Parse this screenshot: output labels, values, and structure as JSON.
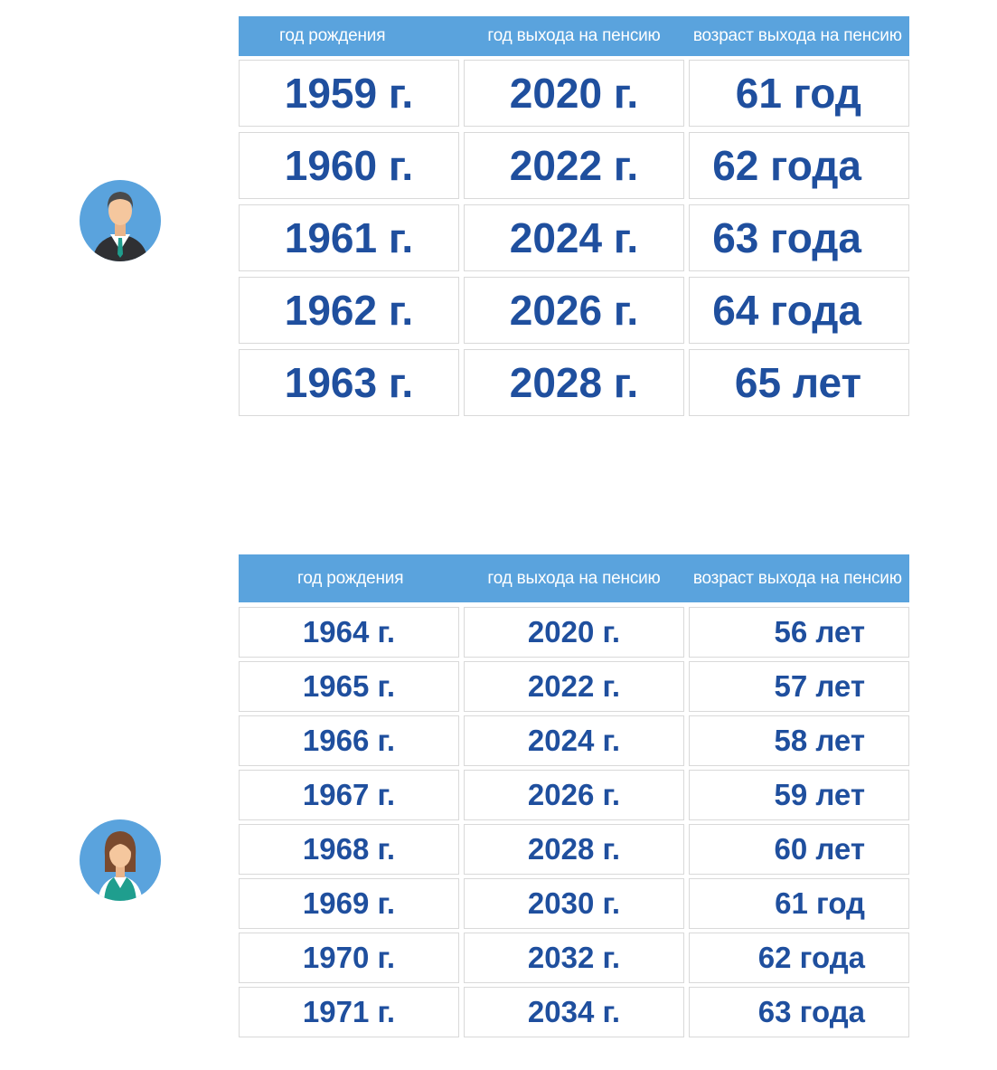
{
  "men_table": {
    "headers": [
      "год рождения",
      "год выхода на пенсию",
      "возраст выхода на пенсию"
    ],
    "rows": [
      [
        "1959 г.",
        "2020 г.",
        "61 год"
      ],
      [
        "1960 г.",
        "2022 г.",
        "62 года"
      ],
      [
        "1961 г.",
        "2024 г.",
        "63 года"
      ],
      [
        "1962 г.",
        "2026 г.",
        "64 года"
      ],
      [
        "1963 г.",
        "2028 г.",
        "65 лет"
      ]
    ]
  },
  "women_table": {
    "headers": [
      "год рождения",
      "год выхода на пенсию",
      "возраст выхода на пенсию"
    ],
    "rows": [
      [
        "1964 г.",
        "2020 г.",
        "56 лет"
      ],
      [
        "1965 г.",
        "2022 г.",
        "57 лет"
      ],
      [
        "1966 г.",
        "2024 г.",
        "58 лет"
      ],
      [
        "1967 г.",
        "2026 г.",
        "59 лет"
      ],
      [
        "1968 г.",
        "2028 г.",
        "60 лет"
      ],
      [
        "1969 г.",
        "2030 г.",
        "61 год"
      ],
      [
        "1970 г.",
        "2032 г.",
        "62 года"
      ],
      [
        "1971 г.",
        "2034 г.",
        "63 года"
      ]
    ]
  },
  "colors": {
    "header_bg": "#5aa3dd",
    "value_text": "#1f4f9e",
    "cell_border": "#d9d9d9",
    "avatar_bg": "#5aa3dd"
  },
  "icons": {
    "men": "man-avatar-icon",
    "women": "woman-avatar-icon"
  }
}
